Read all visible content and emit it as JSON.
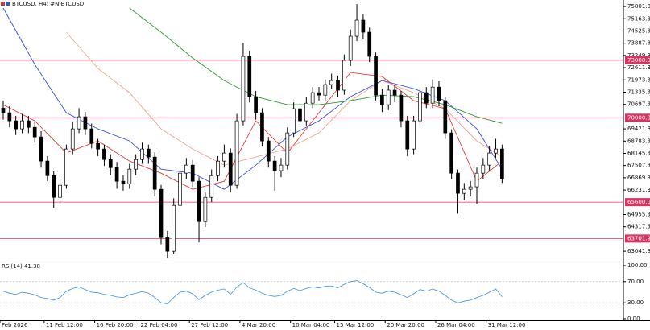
{
  "chart_data": {
    "type": "candlestick",
    "title": "BTCUSD, H4:  #N-BTCUSD",
    "up_color": "#ffffff",
    "down_color": "#000000",
    "open": [
      70500,
      70260,
      69840,
      69420,
      69840,
      69500,
      69000,
      67740,
      66980,
      65850,
      66480,
      68370,
      69420,
      70050,
      69420,
      68660,
      68370,
      67820,
      67400,
      66690,
      66560,
      67320,
      67820,
      68370,
      67950,
      66270,
      63750,
      63040,
      65430,
      67110,
      67530,
      66690,
      64590,
      65850,
      66980,
      67740,
      68160,
      66480,
      69840,
      73200,
      71100,
      70260,
      68790,
      67740,
      67240,
      67530,
      69210,
      70470,
      69840,
      70760,
      71310,
      71180,
      71730,
      71940,
      71440,
      72990,
      74250,
      75090,
      74460,
      73200,
      71180,
      70680,
      71440,
      71180,
      69840,
      68370,
      69840,
      71310,
      70760,
      71600,
      70890,
      69210,
      67110,
      66060,
      66270,
      66400,
      67110,
      67530,
      68160,
      68370
    ],
    "high": [
      70900,
      70600,
      70100,
      70200,
      70100,
      69800,
      69300,
      68000,
      67200,
      66800,
      68600,
      69800,
      70500,
      70300,
      69700,
      68900,
      68600,
      68100,
      67700,
      67000,
      67600,
      68100,
      68700,
      68600,
      68200,
      66500,
      64100,
      65800,
      67400,
      67900,
      67800,
      66900,
      66100,
      67300,
      68000,
      68600,
      68400,
      70200,
      73900,
      73500,
      71400,
      70500,
      69000,
      68000,
      67900,
      69500,
      70800,
      70700,
      71100,
      71600,
      71600,
      72000,
      72300,
      72200,
      73300,
      74600,
      75930,
      75400,
      74700,
      73400,
      71500,
      71700,
      71700,
      71400,
      70100,
      70100,
      71600,
      71600,
      72000,
      71900,
      71100,
      69400,
      67300,
      66600,
      66700,
      67400,
      67900,
      68500,
      68900,
      68600
    ],
    "low": [
      69900,
      69500,
      69100,
      69200,
      69200,
      68700,
      67400,
      66700,
      65300,
      65600,
      66300,
      68100,
      69200,
      69100,
      68400,
      68000,
      67500,
      67000,
      66300,
      66200,
      66300,
      67000,
      67600,
      67600,
      65900,
      63400,
      62700,
      62900,
      65200,
      66800,
      66400,
      63500,
      64300,
      65600,
      66700,
      67400,
      66100,
      66300,
      69600,
      70800,
      69900,
      68500,
      67400,
      66200,
      66900,
      67300,
      69000,
      69500,
      69600,
      70500,
      70900,
      70900,
      71500,
      71100,
      71200,
      72700,
      74000,
      74100,
      72900,
      70900,
      70300,
      70400,
      70800,
      69500,
      68000,
      68100,
      69600,
      70500,
      70500,
      70600,
      68900,
      66800,
      65000,
      65700,
      65900,
      65500,
      66800,
      67200,
      67900,
      66600
    ],
    "close": [
      70260,
      69840,
      69420,
      69840,
      69500,
      69000,
      67740,
      66980,
      65850,
      66480,
      68370,
      69420,
      70050,
      69420,
      68660,
      68370,
      67820,
      67400,
      66690,
      66560,
      67320,
      67820,
      68370,
      67950,
      66270,
      63750,
      63040,
      65430,
      67110,
      67530,
      66690,
      64590,
      65850,
      66980,
      67740,
      68160,
      66480,
      69840,
      73200,
      71100,
      70260,
      68790,
      67740,
      67240,
      67530,
      69210,
      70470,
      69840,
      70760,
      71310,
      71180,
      71730,
      71940,
      71440,
      72990,
      74250,
      75090,
      74460,
      73200,
      71180,
      70680,
      71440,
      71180,
      69840,
      68370,
      69840,
      71310,
      70760,
      71600,
      70890,
      69210,
      67110,
      66060,
      66270,
      66400,
      67110,
      67530,
      68160,
      68370,
      66820
    ],
    "series": [
      {
        "color": "#e23b3b",
        "x": [
          0,
          5,
          10,
          15,
          20,
          25,
          30,
          35,
          40,
          45,
          50,
          55,
          60,
          65,
          70,
          75,
          79
        ],
        "values": [
          70680,
          69840,
          68160,
          68790,
          67740,
          67110,
          66270,
          66690,
          69840,
          68160,
          70260,
          72360,
          72150,
          70890,
          70470,
          66690,
          67740
        ]
      },
      {
        "color": "#f2a493",
        "x": [
          0,
          5,
          10,
          15,
          20,
          25,
          30,
          35,
          40,
          45,
          50,
          55,
          60,
          65,
          70,
          75,
          79
        ],
        "values": [
          null,
          null,
          74460,
          72570,
          71310,
          69420,
          68370,
          67530,
          67950,
          68370,
          69210,
          70890,
          71940,
          71310,
          70470,
          68790,
          67950
        ]
      },
      {
        "color": "#3a4fd6",
        "x": [
          0,
          5,
          10,
          15,
          20,
          25,
          30,
          35,
          40,
          45,
          50,
          55,
          60,
          65,
          70,
          75,
          79
        ],
        "values": [
          75720,
          72780,
          70260,
          69420,
          68790,
          67320,
          67110,
          66270,
          67530,
          69000,
          69840,
          71100,
          71940,
          71520,
          70890,
          69420,
          67320
        ]
      },
      {
        "color": "#2e9a2e",
        "x": [
          0,
          5,
          10,
          15,
          20,
          25,
          30,
          35,
          40,
          45,
          50,
          55,
          60,
          65,
          70,
          75,
          79
        ],
        "values": [
          null,
          null,
          null,
          null,
          75720,
          74460,
          73120,
          71940,
          71100,
          70680,
          70680,
          70890,
          71180,
          71100,
          70680,
          70050,
          69710
        ]
      }
    ],
    "ylim": [
      62500,
      76140
    ],
    "yticks": [
      75801.3,
      75163.3,
      74525.3,
      73887.3,
      73249.3,
      72611.3,
      71973.3,
      71335.3,
      70697.3,
      69421.3,
      68783.3,
      68145.3,
      67507.3,
      66869.3,
      66231.3,
      64955.3,
      64317.3,
      63041.3
    ],
    "levels": [
      {
        "value": 73000,
        "label": "73000.0"
      },
      {
        "value": 70000,
        "label": "70000.0"
      },
      {
        "value": 65600,
        "label": "65600.0"
      },
      {
        "value": 63701.9,
        "label": "63701.9"
      }
    ],
    "level_color": "#d8345f",
    "xticks": [
      {
        "value": 0,
        "label": "Feb 2026"
      },
      {
        "value": 7,
        "label": "11 Feb 12:00"
      },
      {
        "value": 15,
        "label": "16 Feb 20:00"
      },
      {
        "value": 22,
        "label": "22 Feb 04:00"
      },
      {
        "value": 30,
        "label": "27 Feb 12:00"
      },
      {
        "value": 38,
        "label": "4 Mar 20:00"
      },
      {
        "value": 46,
        "label": "10 Mar 04:00"
      },
      {
        "value": 53,
        "label": "15 Mar 12:00"
      },
      {
        "value": 61,
        "label": "20 Mar 20:00"
      },
      {
        "value": 69,
        "label": "26 Mar 04:00"
      },
      {
        "value": 77,
        "label": "31 Mar 12:00"
      }
    ],
    "rsi": {
      "title": "RSI(14) 41.38",
      "color": "#3d8fe6",
      "values": [
        52,
        48,
        46,
        50,
        48,
        45,
        40,
        38,
        35,
        40,
        52,
        57,
        60,
        55,
        50,
        49,
        46,
        44,
        41,
        40,
        45,
        48,
        51,
        48,
        40,
        30,
        28,
        40,
        50,
        52,
        47,
        36,
        44,
        50,
        54,
        56,
        46,
        60,
        68,
        58,
        54,
        48,
        44,
        42,
        44,
        52,
        57,
        53,
        57,
        60,
        58,
        61,
        62,
        58,
        65,
        70,
        72,
        66,
        59,
        50,
        48,
        52,
        50,
        45,
        40,
        47,
        55,
        52,
        56,
        52,
        44,
        35,
        30,
        33,
        35,
        40,
        44,
        50,
        56,
        41.38
      ],
      "ylim": [
        0,
        100
      ],
      "yticks": [
        {
          "value": 100,
          "label": "100.00"
        },
        {
          "value": 70,
          "label": "70.00"
        },
        {
          "value": 30,
          "label": "30.00"
        },
        {
          "value": 0,
          "label": "0.00"
        }
      ]
    }
  }
}
